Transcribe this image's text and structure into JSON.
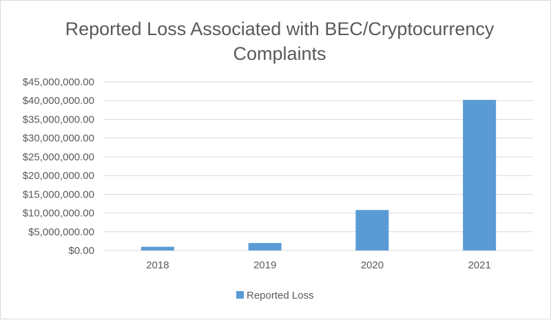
{
  "chart_data": {
    "type": "bar",
    "title": "Reported Loss Associated with BEC/Cryptocurrency",
    "title_line2": "Complaints",
    "categories": [
      "2018",
      "2019",
      "2020",
      "2021"
    ],
    "series": [
      {
        "name": "Reported Loss",
        "values": [
          1000000,
          2000000,
          10800000,
          40200000
        ]
      }
    ],
    "ylim": [
      0,
      45000000
    ],
    "yticks": [
      {
        "value": 0,
        "label": "$0.00"
      },
      {
        "value": 5000000,
        "label": "$5,000,000.00"
      },
      {
        "value": 10000000,
        "label": "$10,000,000.00"
      },
      {
        "value": 15000000,
        "label": "$15,000,000.00"
      },
      {
        "value": 20000000,
        "label": "$20,000,000.00"
      },
      {
        "value": 25000000,
        "label": "$25,000,000.00"
      },
      {
        "value": 30000000,
        "label": "$30,000,000.00"
      },
      {
        "value": 35000000,
        "label": "$35,000,000.00"
      },
      {
        "value": 40000000,
        "label": "$40,000,000.00"
      },
      {
        "value": 45000000,
        "label": "$45,000,000.00"
      }
    ],
    "xlabel": "",
    "ylabel": "",
    "grid": true,
    "legend_position": "bottom",
    "colors": {
      "bar": "#5b9bd5",
      "grid": "#d9d9d9",
      "text": "#595959"
    }
  }
}
